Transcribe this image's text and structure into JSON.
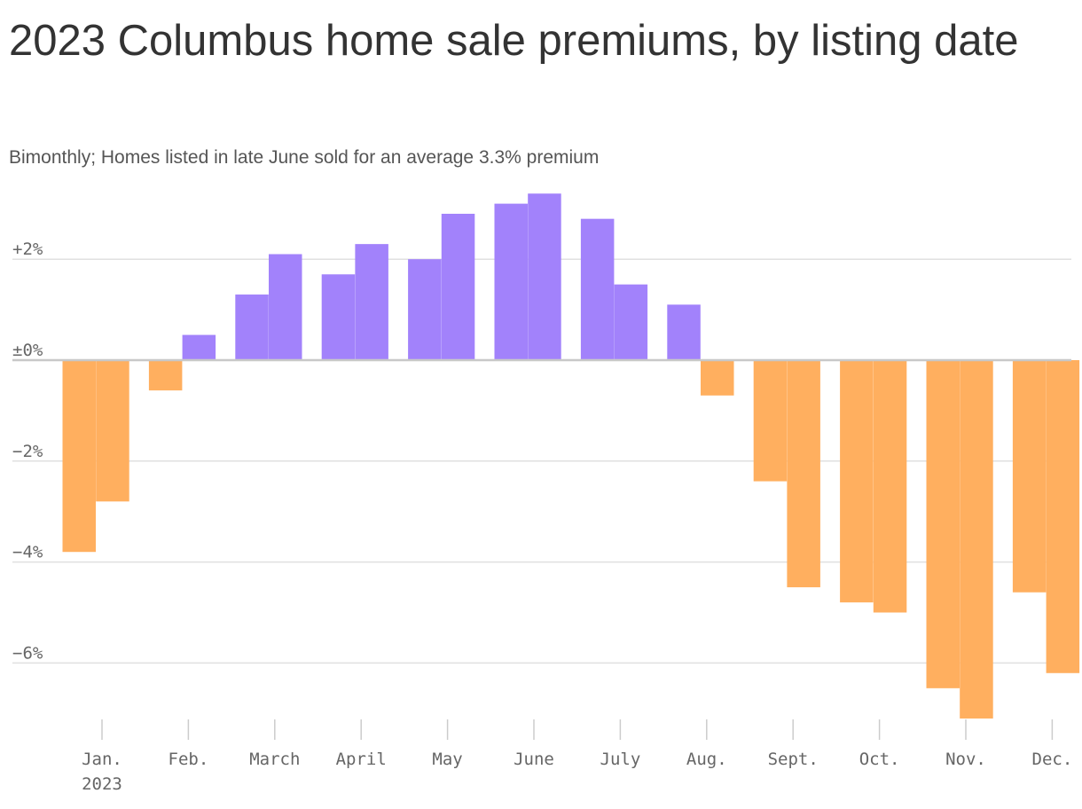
{
  "title": "2023 Columbus home sale premiums, by listing date",
  "subtitle": "Bimonthly; Homes listed in late June sold for an average 3.3% premium",
  "colors": {
    "positive": "#a282fb",
    "negative": "#ffaf5f",
    "grid": "#e0e0e0",
    "zero": "#c8c8c8"
  },
  "chart_data": {
    "type": "bar",
    "ylim": [
      -7.1,
      3.3
    ],
    "yticks": [
      2,
      0,
      -2,
      -4,
      -6
    ],
    "ytick_labels": [
      "+2%",
      "±0%",
      "−2%",
      "−4%",
      "−6%"
    ],
    "month_labels": [
      "Jan.",
      "Feb.",
      "March",
      "April",
      "May",
      "June",
      "July",
      "Aug.",
      "Sept.",
      "Oct.",
      "Nov.",
      "Dec."
    ],
    "year_label": "2023",
    "grid": true,
    "values": [
      -3.8,
      -2.8,
      -0.6,
      0.5,
      1.3,
      2.1,
      1.7,
      2.3,
      2.0,
      2.9,
      3.1,
      3.3,
      2.8,
      1.5,
      1.1,
      -0.7,
      -2.4,
      -4.5,
      -4.8,
      -5.0,
      -6.5,
      -7.1,
      -4.6,
      -6.2
    ]
  }
}
